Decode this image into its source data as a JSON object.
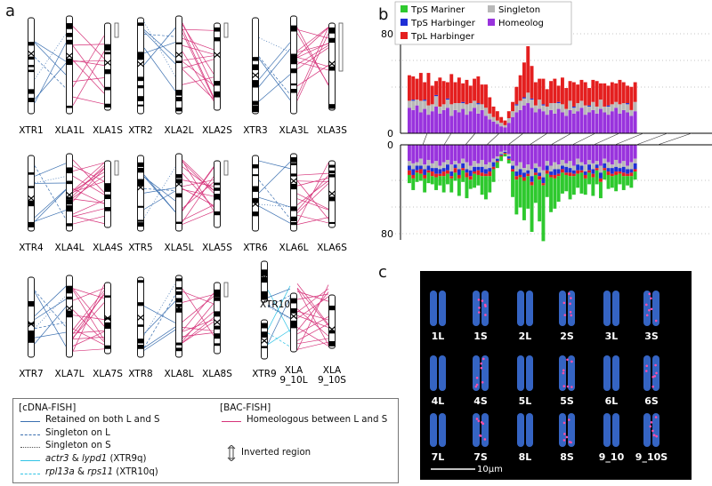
{
  "panels": {
    "a": {
      "letter": "a",
      "groups": [
        {
          "labels": [
            "XTR1",
            "XLA1L",
            "XLA1S"
          ]
        },
        {
          "labels": [
            "XTR2",
            "XLA2L",
            "XLA2S"
          ]
        },
        {
          "labels": [
            "XTR3",
            "XLA3L",
            "XLA3S"
          ]
        },
        {
          "labels": [
            "XTR4",
            "XLA4L",
            "XLA4S"
          ]
        },
        {
          "labels": [
            "XTR5",
            "XLA5L",
            "XLA5S"
          ]
        },
        {
          "labels": [
            "XTR6",
            "XLA6L",
            "XLA6S"
          ]
        },
        {
          "labels": [
            "XTR7",
            "XLA7L",
            "XLA7S"
          ]
        },
        {
          "labels": [
            "XTR8",
            "XLA8L",
            "XLA8S"
          ]
        },
        {
          "labels": [
            "XTR9",
            "XLA 9_10L",
            "XLA 9_10S"
          ],
          "extra_label": "XTR10"
        }
      ]
    },
    "b": {
      "letter": "b"
    },
    "c": {
      "letter": "c",
      "labels": [
        [
          "1L",
          "1S",
          "2L",
          "2S",
          "3L",
          "3S"
        ],
        [
          "4L",
          "4S",
          "5L",
          "5S",
          "6L",
          "6S"
        ],
        [
          "7L",
          "7S",
          "8L",
          "8S",
          "9_10",
          "9_10S"
        ]
      ],
      "scale_bar": "10μm"
    }
  },
  "legend": {
    "cdna_heading": "[cDNA-FISH]",
    "bac_heading": "[BAC-FISH]",
    "retained": "Retained on both L and S",
    "singleton_l": "Singleton on L",
    "singleton_s": "Singleton on S",
    "actr3_a": "actr3",
    "actr3_amp": " & ",
    "actr3_b": "lypd1",
    "actr3_c": " (XTR9q)",
    "rpl_a": "rpl13a",
    "rpl_amp": " & ",
    "rpl_b": "rps11",
    "rpl_c": " (XTR10q)",
    "homeologous": "Homeologous between L and S",
    "inverted": "Inverted region"
  },
  "colors": {
    "retained": "#3a6fb0",
    "homeologous": "#d6337a",
    "cyan": "#31c4e6",
    "mariner": "#2ec92e",
    "tps_harbinger": "#1f2fd6",
    "tpl_harbinger": "#e41f1f",
    "singleton": "#b8b8b8",
    "homeolog": "#9933dd"
  },
  "chart_data": {
    "type": "bar",
    "legend": [
      "TpS Mariner",
      "TpS Harbinger",
      "TpL Harbinger",
      "Singleton",
      "Homeolog"
    ],
    "top_axis": {
      "ticks": [
        "80",
        "0"
      ],
      "ylim": [
        0,
        80
      ]
    },
    "bottom_axis": {
      "ticks": [
        "0",
        "80"
      ],
      "ylim": [
        0,
        80
      ]
    },
    "series_order": [
      "homeolog",
      "singleton",
      "tps_harbinger",
      "tpl_harbinger",
      "tps_mariner"
    ],
    "top_stacks": [
      [
        22,
        6,
        0,
        22
      ],
      [
        20,
        8,
        1,
        20
      ],
      [
        24,
        5,
        0,
        18
      ],
      [
        18,
        10,
        0,
        24
      ],
      [
        21,
        7,
        1,
        15
      ],
      [
        16,
        8,
        0,
        28
      ],
      [
        19,
        6,
        0,
        16
      ],
      [
        23,
        9,
        1,
        12
      ],
      [
        17,
        6,
        0,
        25
      ],
      [
        20,
        5,
        0,
        20
      ],
      [
        22,
        7,
        1,
        14
      ],
      [
        15,
        10,
        0,
        26
      ],
      [
        20,
        6,
        0,
        18
      ],
      [
        18,
        8,
        0,
        22
      ],
      [
        21,
        5,
        1,
        16
      ],
      [
        16,
        9,
        0,
        21
      ],
      [
        19,
        7,
        0,
        15
      ],
      [
        22,
        6,
        0,
        19
      ],
      [
        17,
        8,
        1,
        23
      ],
      [
        20,
        5,
        0,
        17
      ],
      [
        15,
        7,
        0,
        20
      ],
      [
        12,
        5,
        0,
        14
      ],
      [
        10,
        4,
        0,
        9
      ],
      [
        8,
        3,
        0,
        8
      ],
      [
        6,
        3,
        0,
        5
      ],
      [
        5,
        2,
        0,
        4
      ],
      [
        9,
        4,
        0,
        6
      ],
      [
        14,
        5,
        0,
        8
      ],
      [
        18,
        6,
        1,
        15
      ],
      [
        20,
        8,
        0,
        22
      ],
      [
        24,
        6,
        1,
        30
      ],
      [
        26,
        9,
        0,
        40
      ],
      [
        22,
        7,
        1,
        28
      ],
      [
        18,
        6,
        0,
        20
      ],
      [
        21,
        8,
        0,
        18
      ],
      [
        19,
        5,
        1,
        22
      ],
      [
        16,
        7,
        0,
        15
      ],
      [
        20,
        6,
        0,
        19
      ],
      [
        17,
        9,
        0,
        21
      ],
      [
        21,
        5,
        1,
        14
      ],
      [
        18,
        7,
        0,
        23
      ],
      [
        15,
        6,
        0,
        18
      ],
      [
        20,
        8,
        0,
        17
      ],
      [
        17,
        5,
        1,
        21
      ],
      [
        19,
        7,
        0,
        16
      ],
      [
        22,
        6,
        0,
        18
      ],
      [
        16,
        8,
        0,
        20
      ],
      [
        18,
        5,
        1,
        15
      ],
      [
        20,
        7,
        0,
        19
      ],
      [
        17,
        6,
        0,
        22
      ],
      [
        21,
        8,
        0,
        14
      ],
      [
        18,
        5,
        0,
        20
      ],
      [
        16,
        7,
        1,
        17
      ],
      [
        19,
        6,
        0,
        19
      ],
      [
        22,
        5,
        0,
        16
      ],
      [
        17,
        8,
        0,
        21
      ],
      [
        20,
        6,
        0,
        18
      ],
      [
        18,
        7,
        1,
        15
      ],
      [
        15,
        5,
        0,
        20
      ],
      [
        19,
        8,
        0,
        17
      ]
    ],
    "bottom_stacks": [
      [
        14,
        4,
        4,
        4,
        7
      ],
      [
        16,
        5,
        5,
        3,
        10
      ],
      [
        15,
        3,
        4,
        2,
        8
      ],
      [
        12,
        6,
        3,
        4,
        6
      ],
      [
        17,
        4,
        5,
        3,
        12
      ],
      [
        13,
        5,
        4,
        2,
        9
      ],
      [
        16,
        4,
        3,
        4,
        7
      ],
      [
        14,
        6,
        5,
        3,
        11
      ],
      [
        18,
        3,
        4,
        2,
        8
      ],
      [
        15,
        5,
        3,
        4,
        14
      ],
      [
        13,
        4,
        5,
        3,
        9
      ],
      [
        17,
        6,
        4,
        2,
        12
      ],
      [
        14,
        3,
        3,
        4,
        7
      ],
      [
        16,
        5,
        5,
        3,
        15
      ],
      [
        12,
        4,
        4,
        2,
        10
      ],
      [
        15,
        6,
        3,
        4,
        18
      ],
      [
        18,
        4,
        5,
        3,
        8
      ],
      [
        14,
        5,
        4,
        2,
        12
      ],
      [
        16,
        3,
        3,
        4,
        9
      ],
      [
        13,
        6,
        5,
        3,
        16
      ],
      [
        17,
        4,
        4,
        2,
        20
      ],
      [
        15,
        5,
        3,
        4,
        14
      ],
      [
        12,
        3,
        4,
        2,
        11
      ],
      [
        10,
        2,
        2,
        1,
        5
      ],
      [
        6,
        2,
        1,
        1,
        4
      ],
      [
        5,
        1,
        1,
        1,
        2
      ],
      [
        8,
        2,
        2,
        1,
        3
      ],
      [
        14,
        4,
        3,
        2,
        22
      ],
      [
        18,
        5,
        4,
        3,
        30
      ],
      [
        15,
        6,
        5,
        2,
        26
      ],
      [
        20,
        4,
        4,
        3,
        34
      ],
      [
        17,
        5,
        3,
        2,
        28
      ],
      [
        21,
        6,
        5,
        3,
        40
      ],
      [
        16,
        4,
        4,
        2,
        24
      ],
      [
        19,
        5,
        3,
        3,
        36
      ],
      [
        22,
        6,
        5,
        2,
        48
      ],
      [
        14,
        4,
        4,
        3,
        20
      ],
      [
        18,
        5,
        3,
        2,
        30
      ],
      [
        15,
        6,
        5,
        3,
        26
      ],
      [
        17,
        4,
        4,
        2,
        22
      ],
      [
        13,
        5,
        3,
        3,
        18
      ],
      [
        16,
        3,
        5,
        2,
        14
      ],
      [
        14,
        6,
        4,
        3,
        20
      ],
      [
        18,
        4,
        3,
        2,
        16
      ],
      [
        12,
        5,
        5,
        3,
        12
      ],
      [
        15,
        3,
        4,
        2,
        18
      ],
      [
        17,
        6,
        3,
        3,
        14
      ],
      [
        13,
        4,
        5,
        2,
        10
      ],
      [
        16,
        5,
        4,
        3,
        16
      ],
      [
        14,
        3,
        3,
        2,
        12
      ],
      [
        18,
        6,
        5,
        3,
        14
      ],
      [
        12,
        4,
        4,
        2,
        8
      ],
      [
        15,
        5,
        3,
        3,
        12
      ],
      [
        17,
        3,
        5,
        2,
        10
      ],
      [
        13,
        6,
        4,
        3,
        14
      ],
      [
        16,
        4,
        3,
        2,
        9
      ],
      [
        14,
        5,
        5,
        3,
        12
      ],
      [
        18,
        3,
        4,
        2,
        8
      ],
      [
        15,
        6,
        3,
        3,
        10
      ],
      [
        12,
        4,
        5,
        2,
        7
      ]
    ]
  }
}
